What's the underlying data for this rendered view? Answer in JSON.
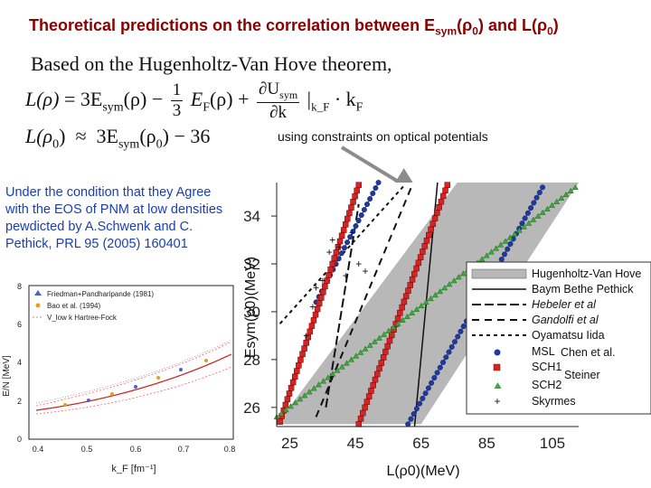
{
  "title": {
    "prefix": "Theoretical predictions on the correlation between E",
    "sub1": "sym",
    "mid": "(ρ",
    "sub2": "0",
    "mid2": ") and L(ρ",
    "sub3": "0",
    "end": ")"
  },
  "theorem_line": "Based on the Hugenholtz-Van Hove theorem,",
  "equation1": {
    "lhs": "L(ρ)",
    "eq": "=",
    "term1": "3E",
    "term1_sub": "sym",
    "term1_arg": "(ρ)",
    "minus": "−",
    "frac1_num": "1",
    "frac1_den": "3",
    "term2": "E",
    "term2_sub": "F",
    "term2_arg": "(ρ) +",
    "frac2_num": "∂U",
    "frac2_num_sub": "sym",
    "frac2_den": "∂k",
    "term3": "|",
    "term3_sub": "k_F",
    "term3_end": "· k",
    "term3_end_sub": "F"
  },
  "equation2": {
    "lhs": "L(ρ",
    "lhs_sub": "0",
    "lhs_end": ")",
    "approx": "≈",
    "term": "3E",
    "term_sub": "sym",
    "term_arg": "(ρ",
    "term_arg_sub": "0",
    "term_arg_end": ")",
    "minus": "−",
    "const": "36"
  },
  "constraint_note": "using constraints on optical potentials",
  "condition_text": "Under the condition that they Agree with the EOS of PNM at low densities pewdicted by A.Schwenk and C. Pethick, PRL 95 (2005) 160401",
  "inset_chart": {
    "y_tick_labels": [
      "0",
      "2",
      "4",
      "6",
      "8"
    ],
    "x_tick_labels": [
      "0.4",
      "0.5",
      "0.6",
      "0.7",
      "0.8"
    ],
    "ylabel": "E/N [MeV]",
    "xlabel": "k_F [fm⁻¹]",
    "legend": [
      "Friedman+Pandharipande (1981)",
      "Bao et al. (1994)",
      "V_low k Hartree-Fock"
    ]
  },
  "chart_data": {
    "type": "line",
    "xlabel": "L(ρ0)(MeV)",
    "ylabel": "Esym(ρ0)(MeV)",
    "xlim": [
      21,
      113
    ],
    "ylim": [
      25.2,
      35.4
    ],
    "x_ticks": [
      25,
      45,
      65,
      85,
      105
    ],
    "y_ticks": [
      26,
      28,
      30,
      32,
      34
    ],
    "grid": false,
    "legend_position": "right",
    "band": {
      "name": "Hugenholtz-Van Hove",
      "lower": [
        [
          21,
          25.3
        ],
        [
          65,
          25.3
        ],
        [
          113,
          35.4
        ],
        [
          76,
          35.4
        ]
      ],
      "color": "#b5b5b5"
    },
    "series": [
      {
        "name": "Baym Bethe Pethick",
        "style": "solid",
        "x": [
          63,
          70
        ],
        "y": [
          25.2,
          35.4
        ]
      },
      {
        "name": "Hebeler et al",
        "style": "dashed",
        "x": [
          36,
          46
        ],
        "y": [
          26.0,
          34.5
        ]
      },
      {
        "name": "Gandolfi et al",
        "style": "dashed",
        "x": [
          33,
          62
        ],
        "y": [
          25.6,
          35.2
        ]
      },
      {
        "name": "Oyamatsu Iida",
        "style": "dashed",
        "x": [
          22,
          60
        ],
        "y": [
          29.5,
          35.3
        ]
      },
      {
        "name": "MSL",
        "marker": "circle",
        "color": "#1f3a9e",
        "x": [
          61,
          102
        ],
        "y": [
          25.3,
          35.2
        ]
      },
      {
        "name": "MSL (upper branch)",
        "marker": "circle",
        "color": "#1f3a9e",
        "x": [
          33,
          52
        ],
        "y": [
          30.4,
          35.4
        ]
      },
      {
        "name": "SCH1",
        "marker": "square",
        "color": "#d42424",
        "x": [
          22,
          46
        ],
        "y": [
          25.4,
          35.3
        ]
      },
      {
        "name": "SCH1 (right branch)",
        "marker": "square",
        "color": "#d42424",
        "x": [
          46,
          73
        ],
        "y": [
          25.3,
          35.3
        ]
      },
      {
        "name": "SCH2",
        "marker": "triangle",
        "color": "#3aa83a",
        "x": [
          21,
          112
        ],
        "y": [
          25.6,
          35.2
        ]
      },
      {
        "name": "Skyrmes",
        "marker": "plus",
        "color": "#111111",
        "x": [
          30,
          32,
          33,
          35,
          37,
          38,
          40,
          42,
          44,
          46,
          48
        ],
        "y": [
          29.0,
          30.2,
          31.0,
          31.3,
          32.5,
          33.0,
          32.7,
          31.5,
          33.3,
          32.0,
          31.7
        ]
      }
    ],
    "legend_entries": [
      "Hugenholtz-Van Hove",
      "Baym Bethe Pethick",
      "Hebeler et al",
      "Gandolfi et al",
      "Oyamatsu Iida",
      "MSL",
      "SCH1",
      "SCH2",
      "Skyrmes"
    ],
    "annotations": [
      "Chen et al.",
      "Steiner"
    ]
  }
}
